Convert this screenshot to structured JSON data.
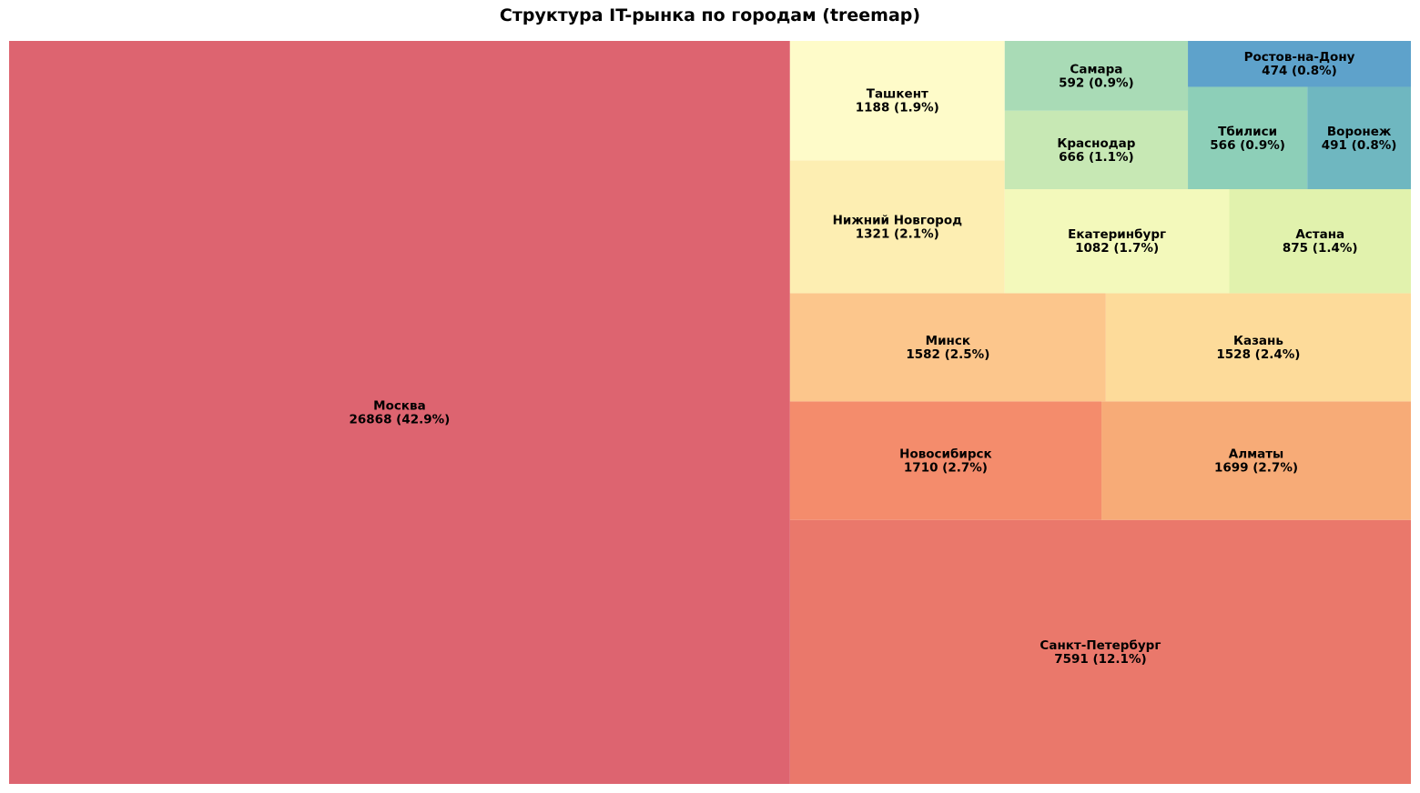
{
  "chart_data": {
    "type": "treemap",
    "title": "Структура IT-рынка по городам (treemap)",
    "items": [
      {
        "name": "Москва",
        "value": 26868,
        "share": "42.9%",
        "color": "#dd6470"
      },
      {
        "name": "Санкт-Петербург",
        "value": 7591,
        "share": "12.1%",
        "color": "#ea786b"
      },
      {
        "name": "Новосибирск",
        "value": 1710,
        "share": "2.7%",
        "color": "#f48c6c"
      },
      {
        "name": "Алматы",
        "value": 1699,
        "share": "2.7%",
        "color": "#f7ab77"
      },
      {
        "name": "Минск",
        "value": 1582,
        "share": "2.5%",
        "color": "#fcc68c"
      },
      {
        "name": "Казань",
        "value": 1528,
        "share": "2.4%",
        "color": "#fddb9a"
      },
      {
        "name": "Нижний Новгород",
        "value": 1321,
        "share": "2.1%",
        "color": "#fdeeb2"
      },
      {
        "name": "Ташкент",
        "value": 1188,
        "share": "1.9%",
        "color": "#fefbc9"
      },
      {
        "name": "Екатеринбург",
        "value": 1082,
        "share": "1.7%",
        "color": "#f3f9bb"
      },
      {
        "name": "Астана",
        "value": 875,
        "share": "1.4%",
        "color": "#e1f2ad"
      },
      {
        "name": "Краснодар",
        "value": 666,
        "share": "1.1%",
        "color": "#c7e8b4"
      },
      {
        "name": "Самара",
        "value": 592,
        "share": "0.9%",
        "color": "#a9dbb6"
      },
      {
        "name": "Тбилиси",
        "value": 566,
        "share": "0.9%",
        "color": "#8dcfb8"
      },
      {
        "name": "Воронеж",
        "value": 491,
        "share": "0.8%",
        "color": "#6fb7c0"
      },
      {
        "name": "Ростов-на-Дону",
        "value": 474,
        "share": "0.8%",
        "color": "#5ea2cb"
      }
    ]
  }
}
